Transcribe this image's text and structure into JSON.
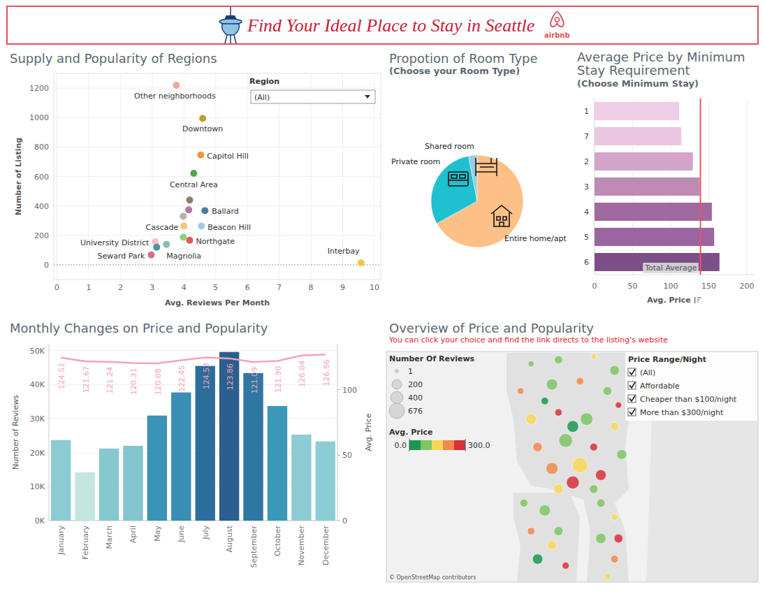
{
  "header": {
    "title": "Find Your Ideal Place to Stay in Seattle",
    "logo_text": "airbnb"
  },
  "chart_data": [
    {
      "type": "scatter",
      "title": "Supply and Popularity of Regions",
      "x_label": "Avg. Reviews Per Month",
      "y_label": "Number of Listing",
      "x": [
        3.76,
        4.59,
        4.53,
        4.31,
        4.18,
        4.66,
        4.15,
        3.98,
        4.0,
        4.55,
        4.18,
        3.98,
        3.1,
        3.14,
        3.45,
        2.97,
        9.58
      ],
      "values": [
        1219,
        994,
        746,
        621,
        440,
        368,
        373,
        330,
        263,
        263,
        167,
        187,
        158,
        120,
        139,
        67,
        14
      ],
      "labels": [
        "Other neighborhoods",
        "Downtown",
        "Capitol Hill",
        "Central Area",
        null,
        "Ballard",
        null,
        null,
        "Cascade",
        "Beacon Hill",
        "Northgate",
        null,
        "University District",
        null,
        "Magnolia",
        "Seward Park",
        "Interbay"
      ],
      "colors": [
        "#f4a3a3",
        "#b8a030",
        "#f0963c",
        "#59a14f",
        "#8c7b6e",
        "#4e79a7",
        "#b07aa1",
        "#bab0ac",
        "#f7c480",
        "#a0cbe8",
        "#e15759",
        "#8cd17d",
        "#fabfd2",
        "#499894",
        "#86bcb6",
        "#d37295",
        "#edc948"
      ],
      "xlim": [
        -0.1,
        10.2
      ],
      "ylim": [
        -100,
        1300
      ],
      "xticks": [
        0,
        1,
        2,
        3,
        4,
        5,
        6,
        7,
        8,
        9,
        10
      ],
      "yticks": [
        0,
        200,
        400,
        600,
        800,
        1000,
        1200
      ],
      "grid": true,
      "filter": {
        "title": "Region",
        "value": "(All)"
      }
    },
    {
      "type": "pie",
      "title": "Propotion of Room Type",
      "subtitle": "(Choose your Room Type)",
      "categories": [
        "Entire home/apt",
        "Private room",
        "Shared room"
      ],
      "values": [
        67,
        30,
        3
      ],
      "colors": [
        "#fdc086",
        "#1fc0d0",
        "#9ecae1"
      ]
    },
    {
      "type": "bar",
      "orientation": "horizontal",
      "title": "Average Price by Minimum Stay Requirement",
      "subtitle": "(Choose Minimum Stay)",
      "categories": [
        "1",
        "7",
        "2",
        "3",
        "4",
        "5",
        "6"
      ],
      "values": [
        111,
        114,
        129,
        138,
        154,
        157,
        164
      ],
      "colors": [
        "#f0cde6",
        "#ebc6e0",
        "#d3a3c9",
        "#bd8bb5",
        "#a06aa0",
        "#9a65a0",
        "#7e4f86"
      ],
      "x_label": "Avg. Price",
      "xlim": [
        0,
        210
      ],
      "xticks": [
        0,
        50,
        100,
        150,
        200
      ],
      "grid": true,
      "reference_line": {
        "label": "Total Average",
        "value": 139,
        "color": "#e05a5a"
      }
    },
    {
      "type": "bar",
      "title": "Monthly Changes on Price and Popularity",
      "categories": [
        "January",
        "February",
        "March",
        "April",
        "May",
        "June",
        "July",
        "August",
        "September",
        "October",
        "November",
        "December"
      ],
      "series": [
        {
          "type": "bar",
          "colors": [
            "#8ccbd3",
            "#c3e6df",
            "#86c8d0",
            "#84c5cf",
            "#3b93b5",
            "#3a8db3",
            "#2c6e9b",
            "#2a5f8f",
            "#2f77a3",
            "#3b98b9",
            "#8ccbd3",
            "#8ccdd5"
          ],
          "values": [
            23700,
            14200,
            21200,
            22000,
            30900,
            37700,
            45500,
            49600,
            43400,
            33700,
            25300,
            23300
          ]
        },
        {
          "type": "line",
          "axis": "y2",
          "color": "#f4a3b5",
          "data_labels": true,
          "values": [
            124.51,
            121.67,
            121.24,
            120.31,
            120.08,
            122.45,
            124.53,
            123.86,
            121.09,
            121.9,
            126.04,
            126.86
          ],
          "value_labels": [
            "124.51",
            "121.67",
            "121.24",
            "120.31",
            "120.08",
            "122.45",
            "124.53",
            "123.86",
            "121.09",
            "121.90",
            "126.04",
            "126.86"
          ]
        }
      ],
      "y_label": "Number of Reviews",
      "y2_label": "Avg. Price",
      "ylim": [
        0,
        52000
      ],
      "yticks": [
        {
          "value": 0,
          "label": "0K"
        },
        {
          "value": 10000,
          "label": "10K"
        },
        {
          "value": 20000,
          "label": "20K"
        },
        {
          "value": 30000,
          "label": "30K"
        },
        {
          "value": 40000,
          "label": "40K"
        },
        {
          "value": 50000,
          "label": "50K"
        }
      ],
      "y2lim": [
        0,
        135
      ],
      "y2ticks": [
        0,
        50,
        100
      ],
      "grid": true
    },
    {
      "type": "map",
      "title": "Overview of Price and Popularity",
      "subtitle": "You can click your choice and find the link directs to the listing's website",
      "x": [
        -122.398,
        -122.356,
        -122.302,
        -122.27,
        -122.414,
        -122.366,
        -122.323,
        -122.281,
        -122.264,
        -122.398,
        -122.356,
        -122.313,
        -122.27,
        -122.388,
        -122.345,
        -122.302,
        -122.259,
        -122.366,
        -122.323,
        -122.291,
        -122.334,
        -122.302,
        -122.356,
        -122.409,
        -122.377,
        -122.398,
        -122.356,
        -122.388,
        -122.345,
        -122.366,
        -122.291,
        -122.27,
        -122.291,
        -122.27,
        -122.281,
        -122.264,
        -122.334,
        -122.377
      ],
      "values": [
        47.745,
        47.75,
        47.754,
        47.737,
        47.712,
        47.72,
        47.724,
        47.712,
        47.695,
        47.678,
        47.686,
        47.678,
        47.669,
        47.644,
        47.652,
        47.644,
        47.635,
        47.618,
        47.622,
        47.61,
        47.601,
        47.593,
        47.593,
        47.576,
        47.567,
        47.542,
        47.542,
        47.508,
        47.5,
        47.525,
        47.576,
        47.559,
        47.533,
        47.508,
        47.487,
        47.533,
        47.669,
        47.7
      ],
      "sizes": [
        40,
        120,
        30,
        200,
        60,
        300,
        90,
        150,
        50,
        250,
        80,
        400,
        120,
        180,
        500,
        100,
        220,
        350,
        676,
        260,
        420,
        140,
        200,
        110,
        300,
        90,
        160,
        230,
        70,
        180,
        130,
        60,
        240,
        100,
        50,
        150,
        330,
        90
      ],
      "prices": [
        95,
        60,
        150,
        80,
        180,
        70,
        210,
        100,
        260,
        120,
        280,
        90,
        140,
        230,
        110,
        270,
        60,
        190,
        150,
        250,
        290,
        75,
        130,
        85,
        65,
        200,
        100,
        55,
        240,
        140,
        90,
        170,
        70,
        220,
        120,
        260,
        45,
        35
      ],
      "xlim": [
        -122.62,
        -122.05
      ],
      "ylim": [
        47.48,
        47.76
      ],
      "tick_labels": false,
      "size_legend": {
        "title": "Number Of Reviews",
        "values": [
          1,
          200,
          400,
          676
        ]
      },
      "color_bar": {
        "title": "Avg. Price",
        "range": [
          0,
          300
        ],
        "ticks": [
          {
            "value": 0,
            "label": "0.0"
          },
          {
            "value": 300,
            "label": "300.0"
          }
        ],
        "colors": [
          "#1a9850",
          "#7fc466",
          "#f9d65b",
          "#f08a4b",
          "#d7303a"
        ]
      },
      "filter": {
        "title": "Price Range/Night",
        "options": [
          "(All)",
          "Affordable",
          "Cheaper than $100/night",
          "More than $300/night"
        ]
      },
      "attribution": "© OpenStreetMap contributors"
    }
  ]
}
